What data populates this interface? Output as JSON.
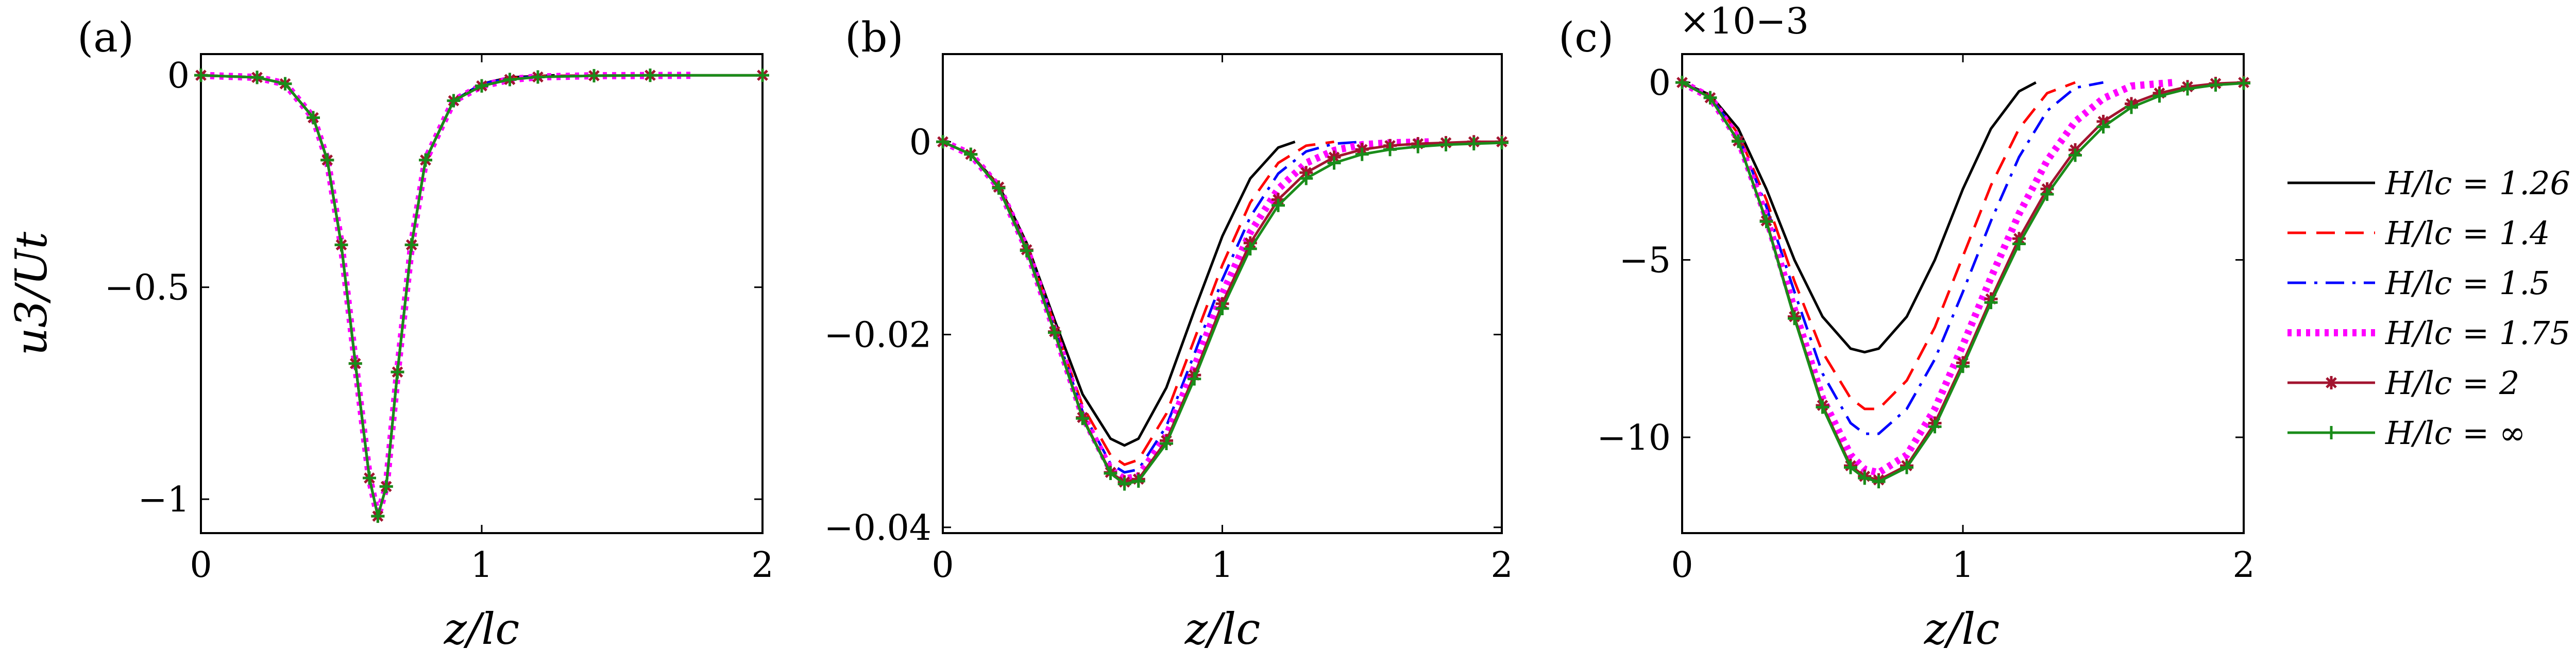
{
  "figure": {
    "ylabel": "u3/Ut",
    "xlabel": "z/lc"
  },
  "legend": {
    "entries": [
      {
        "label": "H/lc = 1.26",
        "color": "#000000",
        "dash": "solid",
        "marker": "none"
      },
      {
        "label": "H/lc = 1.4",
        "color": "#ff0000",
        "dash": "dashed",
        "marker": "none"
      },
      {
        "label": "H/lc = 1.5",
        "color": "#0000ff",
        "dash": "dashdot",
        "marker": "none"
      },
      {
        "label": "H/lc = 1.75",
        "color": "#ff00ff",
        "dash": "dotted",
        "marker": "none"
      },
      {
        "label": "H/lc = 2",
        "color": "#a2142f",
        "dash": "solid",
        "marker": "asterisk"
      },
      {
        "label": "H/lc = ∞",
        "color": "#1a8c1a",
        "dash": "solid",
        "marker": "plus"
      }
    ]
  },
  "chart_data": [
    {
      "panel": "(a)",
      "type": "line",
      "xlabel": "z/lc",
      "ylabel": "u3/Ut",
      "xlim": [
        0,
        2
      ],
      "ylim": [
        -1.08,
        0.05
      ],
      "xticks": [
        0,
        1,
        2
      ],
      "xtick_labels": [
        "0",
        "1",
        "2"
      ],
      "yticks": [
        0,
        -0.5,
        -1
      ],
      "ytick_labels": [
        "0",
        "−0.5",
        "−1"
      ],
      "exponent": "",
      "grid": false,
      "series": [
        {
          "name": "H/lc = 1.26",
          "x": [
            0,
            0.2,
            0.3,
            0.4,
            0.45,
            0.5,
            0.55,
            0.6,
            0.63,
            0.66,
            0.7,
            0.75,
            0.8,
            0.9,
            1.0,
            1.1,
            1.26
          ],
          "y": [
            0,
            -0.005,
            -0.02,
            -0.1,
            -0.2,
            -0.4,
            -0.68,
            -0.95,
            -1.04,
            -0.97,
            -0.7,
            -0.4,
            -0.2,
            -0.06,
            -0.02,
            -0.005,
            0
          ]
        },
        {
          "name": "H/lc = 1.4",
          "x": [
            0,
            0.2,
            0.3,
            0.4,
            0.45,
            0.5,
            0.55,
            0.6,
            0.63,
            0.66,
            0.7,
            0.75,
            0.8,
            0.9,
            1.0,
            1.1,
            1.2,
            1.4
          ],
          "y": [
            0,
            -0.005,
            -0.02,
            -0.1,
            -0.2,
            -0.4,
            -0.68,
            -0.95,
            -1.04,
            -0.97,
            -0.7,
            -0.4,
            -0.2,
            -0.06,
            -0.02,
            -0.007,
            -0.002,
            0
          ]
        },
        {
          "name": "H/lc = 1.5",
          "x": [
            0,
            0.2,
            0.3,
            0.4,
            0.45,
            0.5,
            0.55,
            0.6,
            0.63,
            0.66,
            0.7,
            0.75,
            0.8,
            0.9,
            1.0,
            1.1,
            1.2,
            1.5
          ],
          "y": [
            0,
            -0.005,
            -0.02,
            -0.1,
            -0.2,
            -0.4,
            -0.68,
            -0.95,
            -1.04,
            -0.97,
            -0.7,
            -0.4,
            -0.2,
            -0.06,
            -0.02,
            -0.008,
            -0.003,
            0
          ]
        },
        {
          "name": "H/lc = 1.75",
          "x": [
            0,
            0.2,
            0.3,
            0.4,
            0.45,
            0.5,
            0.55,
            0.6,
            0.63,
            0.66,
            0.7,
            0.75,
            0.8,
            0.9,
            1.0,
            1.1,
            1.2,
            1.4,
            1.75
          ],
          "y": [
            0,
            -0.005,
            -0.02,
            -0.1,
            -0.2,
            -0.4,
            -0.68,
            -0.95,
            -1.04,
            -0.97,
            -0.7,
            -0.4,
            -0.2,
            -0.06,
            -0.025,
            -0.01,
            -0.004,
            -0.001,
            0
          ]
        },
        {
          "name": "H/lc = 2",
          "x": [
            0,
            0.2,
            0.3,
            0.4,
            0.45,
            0.5,
            0.55,
            0.6,
            0.63,
            0.66,
            0.7,
            0.75,
            0.8,
            0.9,
            1.0,
            1.1,
            1.2,
            1.4,
            1.6,
            2.0
          ],
          "y": [
            0,
            -0.005,
            -0.02,
            -0.1,
            -0.2,
            -0.4,
            -0.68,
            -0.95,
            -1.04,
            -0.97,
            -0.7,
            -0.4,
            -0.2,
            -0.06,
            -0.025,
            -0.01,
            -0.004,
            -0.001,
            0,
            0
          ]
        },
        {
          "name": "H/lc = ∞",
          "x": [
            0,
            0.2,
            0.3,
            0.4,
            0.45,
            0.5,
            0.55,
            0.6,
            0.63,
            0.66,
            0.7,
            0.75,
            0.8,
            0.9,
            1.0,
            1.1,
            1.2,
            1.4,
            1.6,
            2.0
          ],
          "y": [
            0,
            -0.005,
            -0.02,
            -0.1,
            -0.2,
            -0.4,
            -0.68,
            -0.95,
            -1.04,
            -0.97,
            -0.7,
            -0.4,
            -0.2,
            -0.06,
            -0.025,
            -0.01,
            -0.004,
            -0.001,
            0,
            0
          ]
        }
      ]
    },
    {
      "panel": "(b)",
      "type": "line",
      "xlabel": "z/lc",
      "ylabel": "",
      "xlim": [
        0,
        2
      ],
      "ylim": [
        -0.0406,
        0.0091
      ],
      "xticks": [
        0,
        1,
        2
      ],
      "xtick_labels": [
        "0",
        "1",
        "2"
      ],
      "yticks": [
        0,
        -0.02,
        -0.04
      ],
      "ytick_labels": [
        "0",
        "−0.02",
        "−0.04"
      ],
      "exponent": "",
      "grid": false,
      "series": [
        {
          "name": "H/lc = 1.26",
          "x": [
            0,
            0.1,
            0.2,
            0.3,
            0.4,
            0.5,
            0.6,
            0.65,
            0.7,
            0.8,
            0.9,
            1.0,
            1.1,
            1.2,
            1.26
          ],
          "y": [
            0,
            -0.0013,
            -0.0045,
            -0.0105,
            -0.0185,
            -0.0262,
            -0.0308,
            -0.0315,
            -0.0308,
            -0.0255,
            -0.0175,
            -0.0098,
            -0.0038,
            -0.0006,
            0
          ]
        },
        {
          "name": "H/lc = 1.4",
          "x": [
            0,
            0.1,
            0.2,
            0.3,
            0.4,
            0.5,
            0.6,
            0.65,
            0.7,
            0.8,
            0.9,
            1.0,
            1.1,
            1.2,
            1.3,
            1.4
          ],
          "y": [
            0,
            -0.0013,
            -0.0046,
            -0.0108,
            -0.019,
            -0.0274,
            -0.0325,
            -0.0335,
            -0.033,
            -0.0282,
            -0.0205,
            -0.0128,
            -0.0063,
            -0.0022,
            -0.0004,
            0
          ]
        },
        {
          "name": "H/lc = 1.5",
          "x": [
            0,
            0.1,
            0.2,
            0.3,
            0.4,
            0.5,
            0.6,
            0.65,
            0.7,
            0.8,
            0.9,
            1.0,
            1.1,
            1.2,
            1.3,
            1.4,
            1.5
          ],
          "y": [
            0,
            -0.0013,
            -0.0047,
            -0.011,
            -0.0194,
            -0.028,
            -0.0334,
            -0.0343,
            -0.034,
            -0.0295,
            -0.022,
            -0.0143,
            -0.0078,
            -0.0033,
            -0.001,
            -0.0002,
            0
          ]
        },
        {
          "name": "H/lc = 1.75",
          "x": [
            0,
            0.1,
            0.2,
            0.3,
            0.4,
            0.5,
            0.6,
            0.65,
            0.7,
            0.8,
            0.9,
            1.0,
            1.1,
            1.2,
            1.3,
            1.4,
            1.5,
            1.6,
            1.75
          ],
          "y": [
            0,
            -0.0013,
            -0.0047,
            -0.0111,
            -0.0196,
            -0.0284,
            -0.034,
            -0.035,
            -0.0347,
            -0.0305,
            -0.0234,
            -0.0158,
            -0.0094,
            -0.0049,
            -0.0022,
            -0.0009,
            -0.0003,
            -0.0001,
            0
          ]
        },
        {
          "name": "H/lc = 2",
          "x": [
            0,
            0.1,
            0.2,
            0.3,
            0.4,
            0.5,
            0.6,
            0.65,
            0.7,
            0.8,
            0.9,
            1.0,
            1.1,
            1.2,
            1.3,
            1.4,
            1.5,
            1.6,
            1.7,
            1.8,
            1.9,
            2.0
          ],
          "y": [
            0,
            -0.0013,
            -0.0047,
            -0.0112,
            -0.0197,
            -0.0286,
            -0.0343,
            -0.0353,
            -0.035,
            -0.031,
            -0.0242,
            -0.0168,
            -0.0105,
            -0.006,
            -0.0032,
            -0.0016,
            -0.0008,
            -0.0004,
            -0.0002,
            -0.0001,
            0,
            0
          ]
        },
        {
          "name": "H/lc = ∞",
          "x": [
            0,
            0.1,
            0.2,
            0.3,
            0.4,
            0.5,
            0.6,
            0.65,
            0.7,
            0.8,
            0.9,
            1.0,
            1.1,
            1.2,
            1.3,
            1.4,
            1.5,
            1.6,
            1.7,
            1.8,
            1.9,
            2.0
          ],
          "y": [
            0,
            -0.0013,
            -0.0048,
            -0.0113,
            -0.0198,
            -0.0287,
            -0.0344,
            -0.0355,
            -0.0352,
            -0.0313,
            -0.0246,
            -0.0173,
            -0.0111,
            -0.0066,
            -0.0038,
            -0.0022,
            -0.0013,
            -0.0008,
            -0.0005,
            -0.0003,
            -0.0002,
            -0.0001
          ]
        }
      ]
    },
    {
      "panel": "(c)",
      "type": "line",
      "xlabel": "z/lc",
      "ylabel": "",
      "xlim": [
        0,
        2
      ],
      "ylim": [
        -12.7,
        0.8
      ],
      "xticks": [
        0,
        1,
        2
      ],
      "xtick_labels": [
        "0",
        "1",
        "2"
      ],
      "yticks": [
        0,
        -5,
        -10
      ],
      "ytick_labels": [
        "0",
        "−5",
        "−10"
      ],
      "exponent": "×10−3",
      "grid": false,
      "series": [
        {
          "name": "H/lc = 1.26",
          "x": [
            0,
            0.1,
            0.2,
            0.3,
            0.4,
            0.5,
            0.6,
            0.65,
            0.7,
            0.8,
            0.9,
            1.0,
            1.1,
            1.2,
            1.26
          ],
          "y": [
            0,
            -0.35,
            -1.3,
            -3.0,
            -5.0,
            -6.6,
            -7.5,
            -7.6,
            -7.5,
            -6.6,
            -5.0,
            -3.0,
            -1.3,
            -0.25,
            0
          ]
        },
        {
          "name": "H/lc = 1.4",
          "x": [
            0,
            0.1,
            0.2,
            0.3,
            0.4,
            0.5,
            0.6,
            0.65,
            0.7,
            0.8,
            0.9,
            1.0,
            1.1,
            1.2,
            1.3,
            1.4
          ],
          "y": [
            0,
            -0.38,
            -1.45,
            -3.3,
            -5.6,
            -7.6,
            -8.9,
            -9.2,
            -9.2,
            -8.4,
            -6.9,
            -4.9,
            -2.9,
            -1.3,
            -0.3,
            0
          ]
        },
        {
          "name": "H/lc = 1.5",
          "x": [
            0,
            0.1,
            0.2,
            0.3,
            0.4,
            0.5,
            0.6,
            0.65,
            0.7,
            0.8,
            0.9,
            1.0,
            1.1,
            1.2,
            1.3,
            1.4,
            1.5
          ],
          "y": [
            0,
            -0.4,
            -1.5,
            -3.5,
            -5.9,
            -8.2,
            -9.6,
            -9.9,
            -9.9,
            -9.2,
            -7.8,
            -5.9,
            -3.9,
            -2.1,
            -0.8,
            -0.15,
            0
          ]
        },
        {
          "name": "H/lc = 1.75",
          "x": [
            0,
            0.1,
            0.2,
            0.3,
            0.4,
            0.5,
            0.6,
            0.65,
            0.7,
            0.8,
            0.9,
            1.0,
            1.1,
            1.2,
            1.3,
            1.4,
            1.5,
            1.6,
            1.75
          ],
          "y": [
            0,
            -0.42,
            -1.6,
            -3.8,
            -6.4,
            -8.9,
            -10.5,
            -10.9,
            -11.0,
            -10.5,
            -9.2,
            -7.4,
            -5.5,
            -3.7,
            -2.2,
            -1.1,
            -0.45,
            -0.1,
            0
          ]
        },
        {
          "name": "H/lc = 2",
          "x": [
            0,
            0.1,
            0.2,
            0.3,
            0.4,
            0.5,
            0.6,
            0.65,
            0.7,
            0.8,
            0.9,
            1.0,
            1.1,
            1.2,
            1.3,
            1.4,
            1.5,
            1.6,
            1.7,
            1.8,
            1.9,
            2.0
          ],
          "y": [
            0,
            -0.43,
            -1.65,
            -3.9,
            -6.6,
            -9.1,
            -10.8,
            -11.1,
            -11.2,
            -10.8,
            -9.6,
            -7.9,
            -6.1,
            -4.4,
            -3.0,
            -1.9,
            -1.1,
            -0.6,
            -0.3,
            -0.12,
            -0.03,
            0
          ]
        },
        {
          "name": "H/lc = ∞",
          "x": [
            0,
            0.1,
            0.2,
            0.3,
            0.4,
            0.5,
            0.6,
            0.65,
            0.7,
            0.8,
            0.9,
            1.0,
            1.1,
            1.2,
            1.3,
            1.4,
            1.5,
            1.6,
            1.7,
            1.8,
            1.9,
            2.0
          ],
          "y": [
            0,
            -0.43,
            -1.66,
            -3.92,
            -6.65,
            -9.15,
            -10.85,
            -11.15,
            -11.25,
            -10.85,
            -9.7,
            -8.0,
            -6.2,
            -4.55,
            -3.15,
            -2.05,
            -1.25,
            -0.7,
            -0.38,
            -0.18,
            -0.07,
            -0.02
          ]
        }
      ]
    }
  ]
}
